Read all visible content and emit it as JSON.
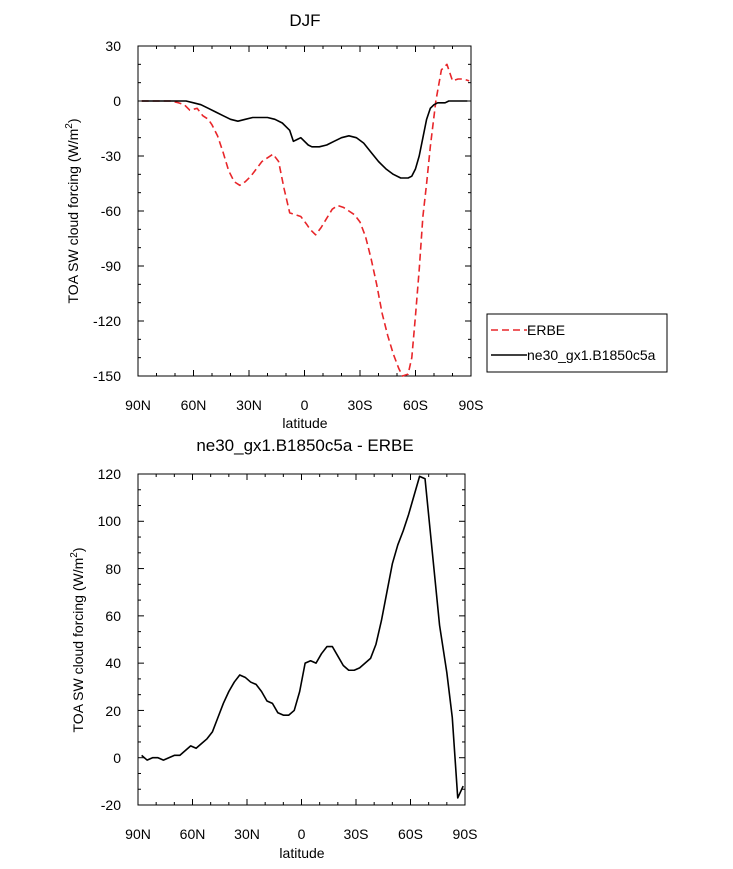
{
  "chart_data": [
    {
      "type": "line",
      "title": "DJF",
      "xlabel": "latitude",
      "ylabel": "TOA SW cloud forcing (W/m",
      "ylabel_sup": "2",
      "ylabel_end": ")",
      "xlim": [
        -90,
        90
      ],
      "ylim": [
        -150,
        30
      ],
      "xticks": [
        -90,
        -60,
        -30,
        0,
        30,
        60,
        90
      ],
      "xtick_labels": [
        "90N",
        "60N",
        "30N",
        "0",
        "30S",
        "60S",
        "90S"
      ],
      "yticks": [
        -150,
        -120,
        -90,
        -60,
        -30,
        0,
        30
      ],
      "ytick_labels": [
        "-150",
        "-120",
        "-90",
        "-60",
        "-30",
        "0",
        "30"
      ],
      "legend": {
        "placement": "right",
        "entries": [
          "ERBE",
          "ne30_gx1.B1850c5a"
        ]
      },
      "series": [
        {
          "name": "ERBE",
          "color": "#e8262a",
          "dash": true,
          "x": [
            -88,
            -85,
            -80,
            -75,
            -72,
            -68,
            -65,
            -62,
            -58,
            -55,
            -52,
            -50,
            -47,
            -44,
            -41,
            -38,
            -35,
            -32,
            -29,
            -26,
            -23,
            -20,
            -17,
            -14,
            -11,
            -8,
            -5,
            -2,
            1,
            3,
            6,
            9,
            12,
            15,
            18,
            21,
            24,
            27,
            30,
            33,
            36,
            39,
            42,
            45,
            48,
            51,
            53,
            56,
            58,
            60,
            62,
            64,
            66,
            68,
            71,
            74,
            77,
            80,
            83,
            86,
            89
          ],
          "values": [
            0,
            0,
            0,
            0,
            0,
            -1,
            -2,
            -5,
            -4,
            -8,
            -10,
            -13,
            -19,
            -28,
            -38,
            -44,
            -46,
            -44,
            -41,
            -37,
            -33,
            -31,
            -29,
            -33,
            -48,
            -61,
            -62,
            -63,
            -67,
            -70,
            -73,
            -69,
            -64,
            -59,
            -57,
            -58,
            -60,
            -62,
            -66,
            -74,
            -86,
            -100,
            -116,
            -128,
            -138,
            -146,
            -150,
            -149,
            -140,
            -117,
            -92,
            -63,
            -45,
            -25,
            0,
            17,
            20,
            11,
            12,
            12,
            11
          ],
          "values_visible_count": 61
        },
        {
          "name": "ne30_gx1.B1850c5a",
          "color": "#000000",
          "dash": false,
          "x": [
            -88,
            -84,
            -80,
            -76,
            -72,
            -68,
            -64,
            -60,
            -56,
            -52,
            -48,
            -44,
            -40,
            -36,
            -32,
            -28,
            -24,
            -20,
            -16,
            -12,
            -8,
            -6,
            -4,
            -2,
            2,
            4,
            8,
            12,
            16,
            20,
            24,
            28,
            32,
            36,
            40,
            44,
            48,
            52,
            54,
            56,
            58,
            60,
            62,
            64,
            66,
            68,
            70,
            72,
            74,
            76,
            78,
            80,
            84,
            88
          ],
          "values": [
            0,
            0,
            0,
            0,
            0,
            0,
            0,
            -1,
            -2,
            -4,
            -6,
            -8,
            -10,
            -11,
            -10,
            -9,
            -9,
            -9,
            -10,
            -12,
            -16,
            -22,
            -21,
            -20,
            -24,
            -25,
            -25,
            -24,
            -22,
            -20,
            -19,
            -20,
            -23,
            -28,
            -33,
            -37,
            -40,
            -42,
            -42,
            -42,
            -41,
            -37,
            -30,
            -20,
            -10,
            -4,
            -2,
            -1,
            -1,
            -1,
            0,
            0,
            0,
            0
          ]
        }
      ]
    },
    {
      "type": "line",
      "title": "ne30_gx1.B1850c5a - ERBE",
      "xlabel": "latitude",
      "ylabel": "TOA SW cloud forcing (W/m",
      "ylabel_sup": "2",
      "ylabel_end": ")",
      "xlim": [
        -90,
        90
      ],
      "ylim": [
        -20,
        120
      ],
      "xticks": [
        -90,
        -60,
        -30,
        0,
        30,
        60,
        90
      ],
      "xtick_labels": [
        "90N",
        "60N",
        "30N",
        "0",
        "30S",
        "60S",
        "90S"
      ],
      "yticks": [
        -20,
        0,
        20,
        40,
        60,
        80,
        100,
        120
      ],
      "ytick_labels": [
        "-20",
        "0",
        "20",
        "40",
        "60",
        "80",
        "100",
        "120"
      ],
      "series": [
        {
          "name": "ne30_gx1.B1850c5a - ERBE",
          "color": "#000000",
          "dash": false,
          "x": [
            -88,
            -85,
            -82,
            -79,
            -76,
            -73,
            -70,
            -67,
            -64,
            -61,
            -58,
            -55,
            -52,
            -49,
            -46,
            -43,
            -40,
            -37,
            -34,
            -31,
            -28,
            -25,
            -22,
            -19,
            -16,
            -13,
            -10,
            -7,
            -4,
            -1,
            2,
            5,
            8,
            11,
            14,
            17,
            20,
            23,
            26,
            29,
            32,
            35,
            38,
            41,
            44,
            47,
            50,
            53,
            56,
            59,
            62,
            65,
            68,
            72,
            76,
            80,
            83,
            86,
            89
          ],
          "values": [
            1,
            -1,
            0,
            0,
            -1,
            0,
            1,
            1,
            3,
            5,
            4,
            6,
            8,
            11,
            17,
            23,
            28,
            32,
            35,
            34,
            32,
            31,
            28,
            24,
            23,
            19,
            18,
            18,
            20,
            28,
            40,
            41,
            40,
            44,
            47,
            47,
            43,
            39,
            37,
            37,
            38,
            40,
            42,
            48,
            58,
            70,
            82,
            90,
            96,
            103,
            111,
            119,
            118,
            87,
            56,
            36,
            17,
            -17,
            -12
          ]
        }
      ]
    }
  ]
}
